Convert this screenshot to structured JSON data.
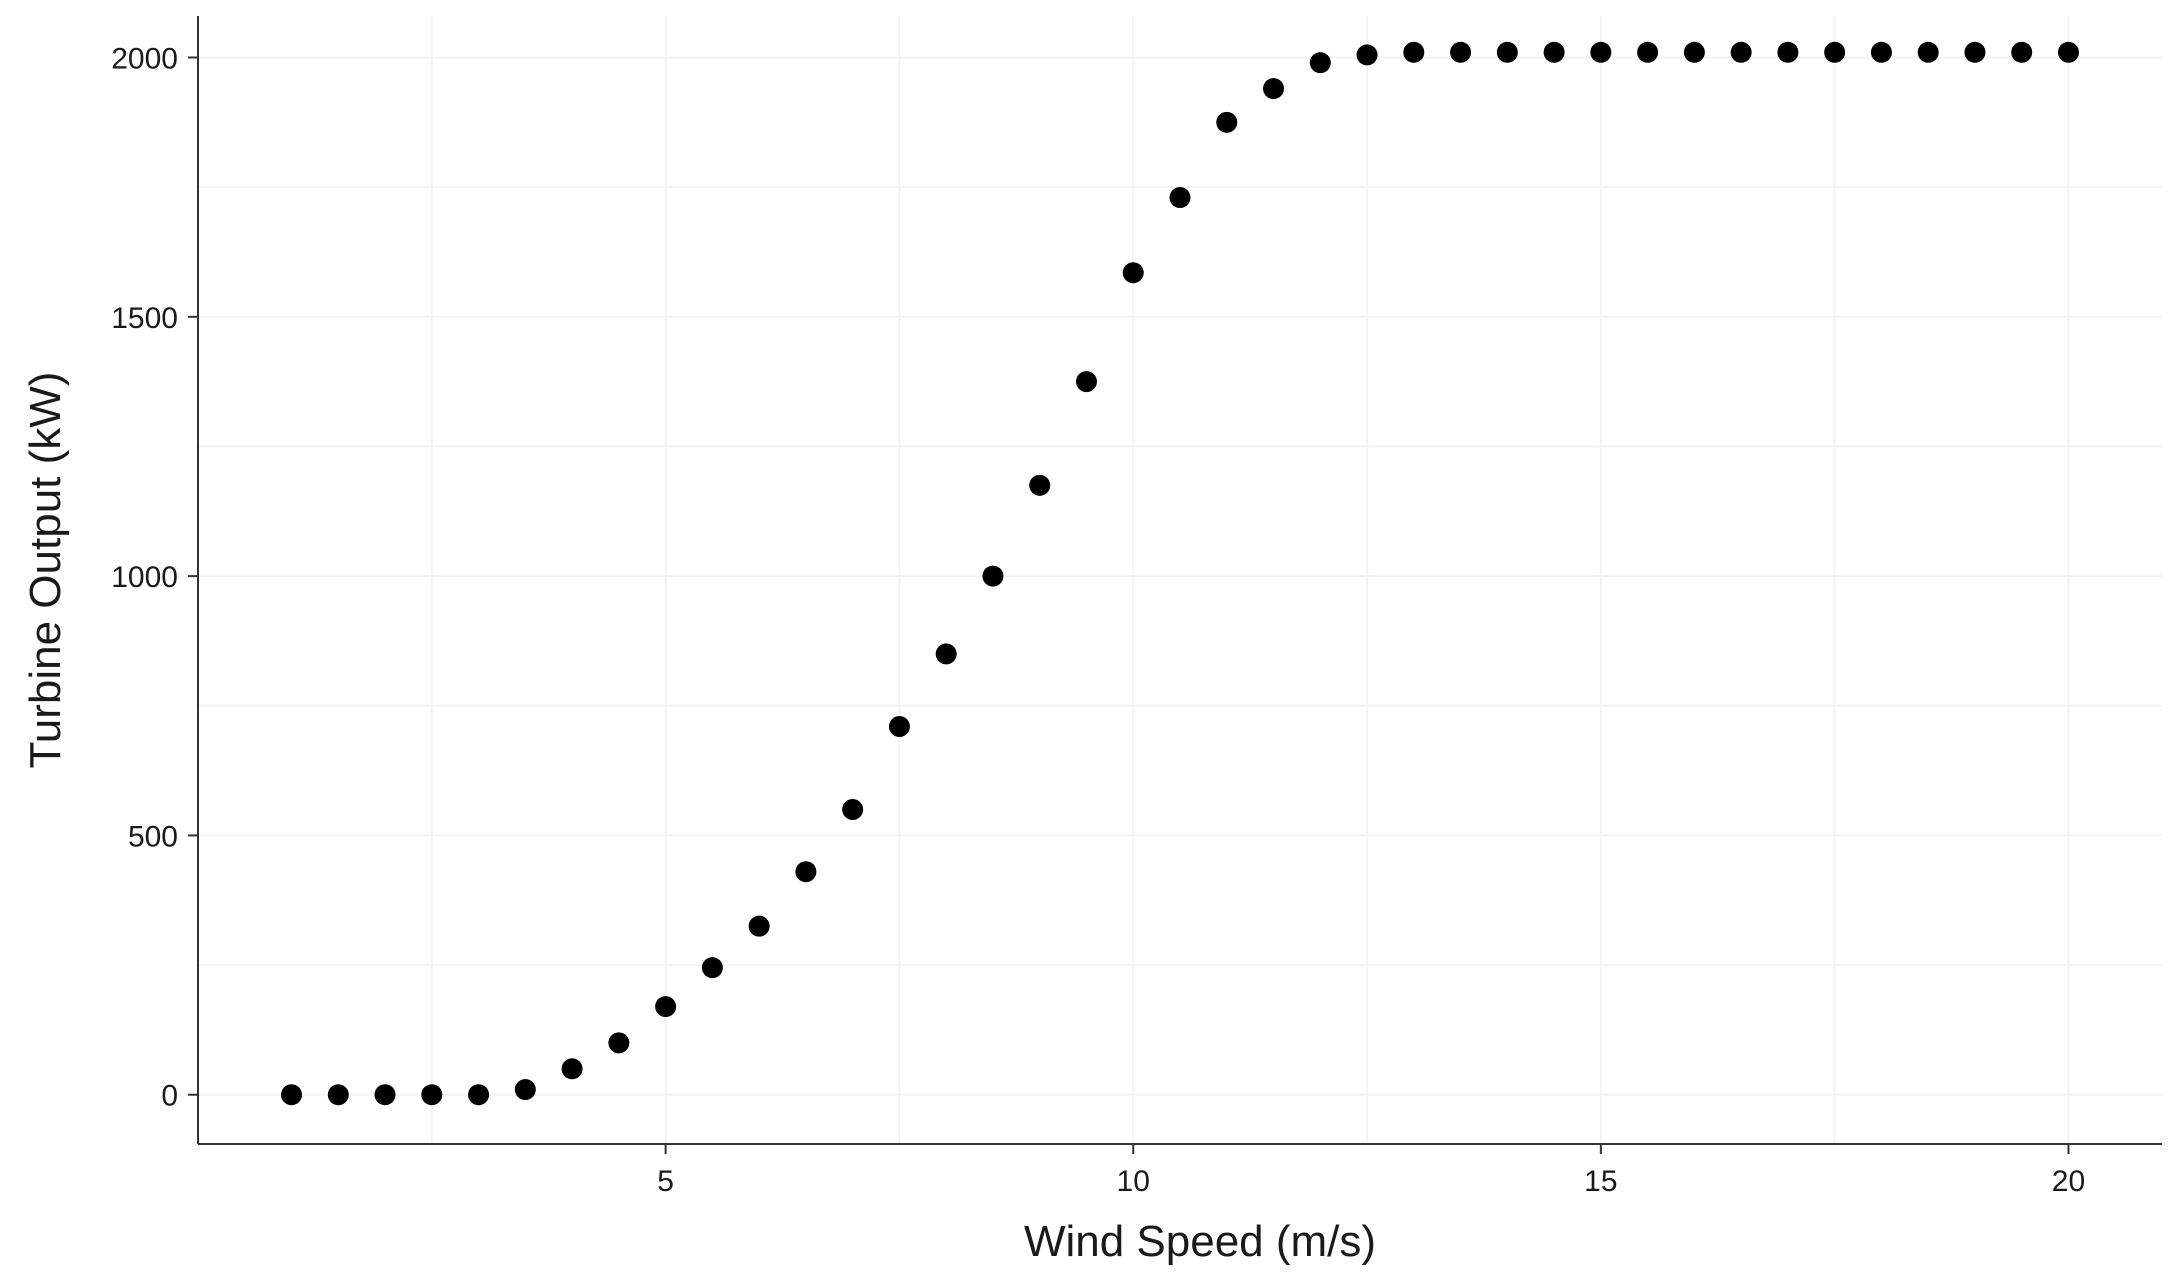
{
  "chart_data": {
    "type": "scatter",
    "title": "",
    "xlabel": "Wind Speed (m/s)",
    "ylabel": "Turbine Output (kW)",
    "xlim": [
      0,
      21
    ],
    "ylim": [
      -95,
      2080
    ],
    "xticks": [
      5,
      10,
      15,
      20
    ],
    "yticks": [
      0,
      500,
      1000,
      1500,
      2000
    ],
    "grid": true,
    "legend": "none",
    "point_color": "#000000",
    "series": [
      {
        "x": [
          1,
          1.5,
          2,
          2.5,
          3,
          3.5,
          4,
          4.5,
          5,
          5.5,
          6,
          6.5,
          7,
          7.5,
          8,
          8.5,
          9,
          9.5,
          10,
          10.5,
          11,
          11.5,
          12,
          12.5,
          13,
          13.5,
          14,
          14.5,
          15,
          15.5,
          16,
          16.5,
          17,
          17.5,
          18,
          18.5,
          19,
          19.5,
          20
        ],
        "y": [
          0,
          0,
          0,
          0,
          0,
          10,
          50,
          100,
          170,
          245,
          325,
          430,
          550,
          710,
          850,
          1000,
          1175,
          1375,
          1585,
          1730,
          1875,
          1940,
          1990,
          2005,
          2010,
          2010,
          2010,
          2010,
          2010,
          2010,
          2010,
          2010,
          2010,
          2010,
          2010,
          2010,
          2010,
          2010,
          2010
        ]
      }
    ]
  }
}
